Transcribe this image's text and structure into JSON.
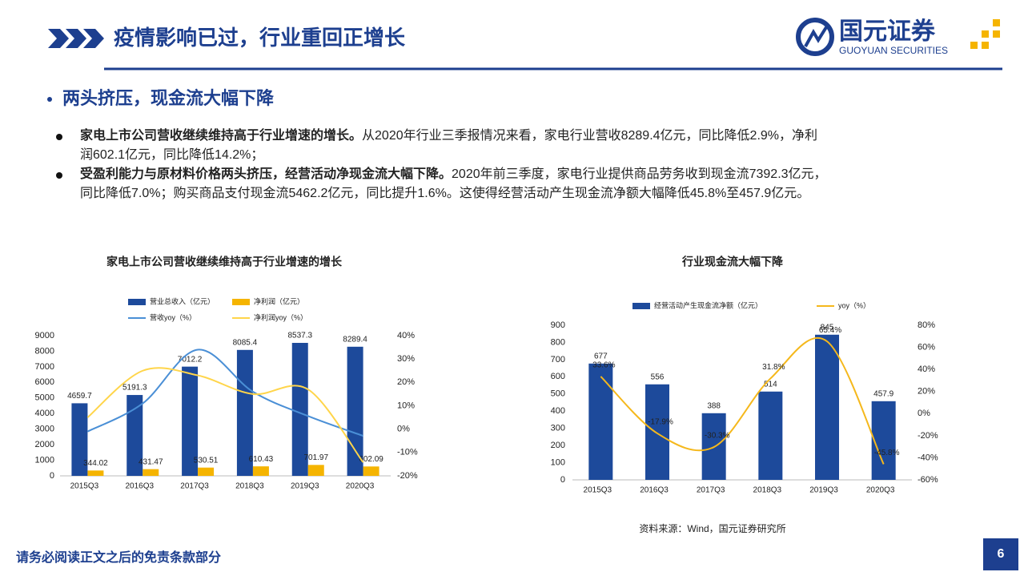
{
  "header": {
    "title": "疫情影响已过，行业重回正增长",
    "logo": "国元证券",
    "logo_en": "GUOYUAN SECURITIES"
  },
  "section": "两头挤压，现金流大幅下降",
  "bullets": [
    {
      "lead": "家电上市公司营收继续维持高于行业增速的增长。",
      "text": "从2020年行业三季报情况来看，家电行业营收8289.4亿元，同比降低2.9%，净利润602.1亿元，同比降低14.2%；"
    },
    {
      "lead": "受盈利能力与原材料价格两头挤压，经营活动净现金流大幅下降。",
      "text": "2020年前三季度，家电行业提供商品劳务收到现金流7392.3亿元，同比降低7.0%；购买商品支付现金流5462.2亿元，同比提升1.6%。这使得经营活动产生现金流净额大幅降低45.8%至457.9亿元。"
    }
  ],
  "chart_data": [
    {
      "type": "bar",
      "title": "家电上市公司营收继续维持高于行业增速的增长",
      "categories": [
        "2015Q3",
        "2016Q3",
        "2017Q3",
        "2018Q3",
        "2019Q3",
        "2020Q3"
      ],
      "series": [
        {
          "name": "营业总收入（亿元）",
          "color": "#1d4a9b",
          "type": "bar",
          "values": [
            4659.7,
            5191.3,
            7012.2,
            8085.4,
            8537.3,
            8289.4
          ]
        },
        {
          "name": "净利润（亿元）",
          "color": "#f5b400",
          "type": "bar",
          "values": [
            344.02,
            431.47,
            530.51,
            610.43,
            701.97,
            602.09
          ]
        },
        {
          "name": "营收yoy（%）",
          "color": "#4a8fd6",
          "type": "line",
          "axis": "y2",
          "values": [
            -1,
            11,
            34,
            16,
            5.6,
            -2.9
          ]
        },
        {
          "name": "净利润yoy（%）",
          "color": "#ffd54a",
          "type": "line",
          "axis": "y2",
          "values": [
            5,
            25,
            23,
            15,
            17,
            -14.2
          ]
        }
      ],
      "ylim": [
        0,
        9000
      ],
      "yticks": [
        0,
        1000,
        2000,
        3000,
        4000,
        5000,
        6000,
        7000,
        8000,
        9000
      ],
      "y2lim": [
        -20,
        40
      ],
      "y2ticks": [
        {
          "value": -20,
          "label": "-20%"
        },
        {
          "value": -10,
          "label": "-10%"
        },
        {
          "value": 0,
          "label": "0%"
        },
        {
          "value": 10,
          "label": "10%"
        },
        {
          "value": 20,
          "label": "20%"
        },
        {
          "value": 30,
          "label": "30%"
        },
        {
          "value": 40,
          "label": "40%"
        }
      ]
    },
    {
      "type": "bar",
      "title": "行业现金流大幅下降",
      "categories": [
        "2015Q3",
        "2016Q3",
        "2017Q3",
        "2018Q3",
        "2019Q3",
        "2020Q3"
      ],
      "series": [
        {
          "name": "经营活动产生现金流净额（亿元）",
          "color": "#1d4a9b",
          "type": "bar",
          "values": [
            677,
            556,
            388,
            514,
            845,
            457.9
          ]
        },
        {
          "name": "yoy（%）",
          "color": "#f5b81c",
          "type": "line",
          "axis": "y2",
          "values": [
            33.6,
            -17.9,
            -30.3,
            31.8,
            65.4,
            -45.8
          ],
          "value_labels": [
            "33.6%",
            "-17.9%",
            "-30.3%",
            "31.8%",
            "65.4%",
            "-45.8%"
          ]
        }
      ],
      "ylim": [
        0,
        900
      ],
      "yticks": [
        0,
        100,
        200,
        300,
        400,
        500,
        600,
        700,
        800,
        900
      ],
      "y2lim": [
        -60,
        80
      ],
      "y2ticks": [
        {
          "value": -60,
          "label": "-60%"
        },
        {
          "value": -40,
          "label": "-40%"
        },
        {
          "value": -20,
          "label": "-20%"
        },
        {
          "value": 0,
          "label": "0%"
        },
        {
          "value": 20,
          "label": "20%"
        },
        {
          "value": 40,
          "label": "40%"
        },
        {
          "value": 60,
          "label": "60%"
        },
        {
          "value": 80,
          "label": "80%"
        }
      ]
    }
  ],
  "source": "资料来源：Wind，国元证券研究所",
  "footer": "请务必阅读正文之后的免责条款部分",
  "page": "6"
}
